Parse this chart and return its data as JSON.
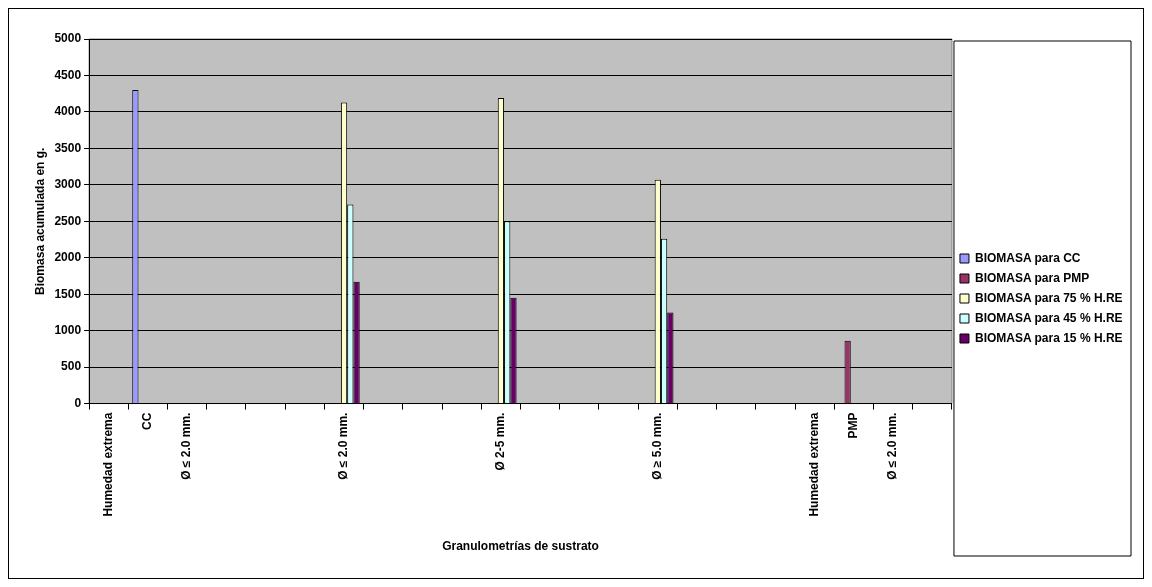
{
  "chart_data": {
    "type": "bar",
    "xlabel": "Granulometrías de sustrato",
    "ylabel": "Biomasa acumulada en g.",
    "categories": [
      "Humedad extrema",
      "CC",
      "Ø ≤ 2.0 mm.",
      null,
      null,
      null,
      "Ø ≤ 2.0 mm.",
      null,
      null,
      null,
      "Ø 2-5 mm.",
      null,
      null,
      null,
      "Ø ≥ 5.0 mm.",
      null,
      null,
      null,
      "Humedad extrema",
      "PMP",
      "Ø ≤ 2.0 mm.",
      null
    ],
    "series": [
      {
        "name": "BIOMASA para CC",
        "color": "#9999ff",
        "values": [
          null,
          4300,
          null,
          null,
          null,
          null,
          null,
          null,
          null,
          null,
          null,
          null,
          null,
          null,
          null,
          null,
          null,
          null,
          null,
          null,
          null,
          null
        ]
      },
      {
        "name": "BIOMASA para PMP",
        "color": "#993366",
        "values": [
          null,
          null,
          null,
          null,
          null,
          null,
          null,
          null,
          null,
          null,
          null,
          null,
          null,
          null,
          null,
          null,
          null,
          null,
          null,
          860,
          null,
          null
        ]
      },
      {
        "name": "BIOMASA para 75 % H.RE",
        "color": "#ffffcc",
        "values": [
          null,
          null,
          null,
          null,
          null,
          null,
          4130,
          null,
          null,
          null,
          4190,
          null,
          null,
          null,
          3070,
          null,
          null,
          null,
          null,
          null,
          null,
          null
        ]
      },
      {
        "name": "BIOMASA para 45 % H.RE",
        "color": "#ccffff",
        "values": [
          null,
          null,
          null,
          null,
          null,
          null,
          2730,
          null,
          null,
          null,
          2500,
          null,
          null,
          null,
          2260,
          null,
          null,
          null,
          null,
          null,
          null,
          null
        ]
      },
      {
        "name": "BIOMASA para 15 % H.RE",
        "color": "#660066",
        "values": [
          null,
          null,
          null,
          null,
          null,
          null,
          1670,
          null,
          null,
          null,
          1450,
          null,
          null,
          null,
          1250,
          null,
          null,
          null,
          null,
          null,
          null,
          null
        ]
      }
    ],
    "ylim": [
      0,
      5000
    ],
    "yticks": [
      0,
      500,
      1000,
      1500,
      2000,
      2500,
      3000,
      3500,
      4000,
      4500,
      5000
    ],
    "grid": "y",
    "legend": "right"
  }
}
